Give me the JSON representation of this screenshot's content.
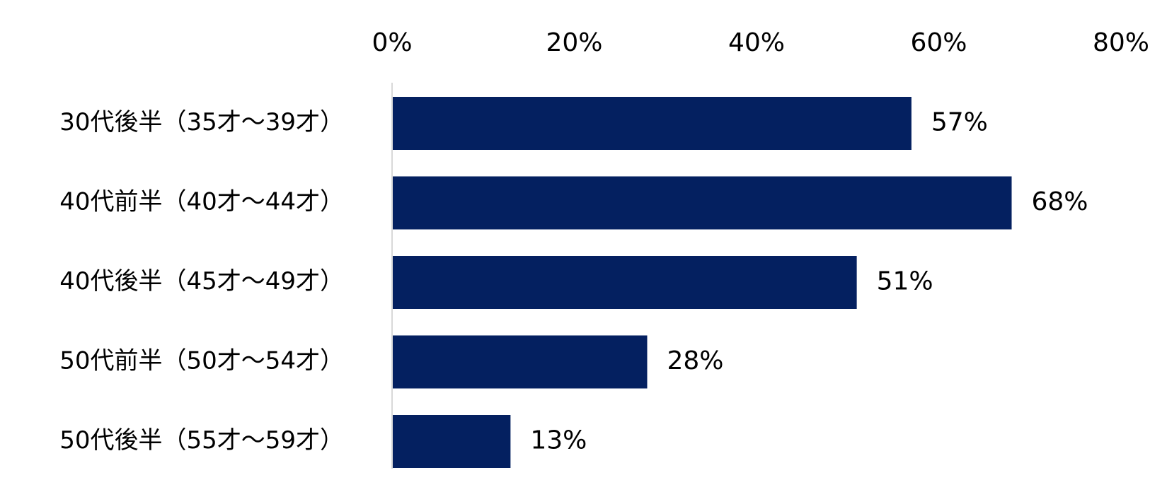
{
  "chart_data": {
    "type": "bar",
    "orientation": "horizontal",
    "categories": [
      "30代後半（35才～39才）",
      "40代前半（40才～44才）",
      "40代後半（45才～49才）",
      "50代前半（50才～54才）",
      "50代後半（55才～59才）"
    ],
    "values": [
      57,
      68,
      51,
      28,
      13
    ],
    "data_labels": [
      "57%",
      "68%",
      "51%",
      "28%",
      "13%"
    ],
    "xlim": [
      0,
      80
    ],
    "xticks": [
      0,
      20,
      40,
      60,
      80
    ],
    "xtick_labels": [
      "0%",
      "20%",
      "40%",
      "60%",
      "80%"
    ],
    "x_axis_position": "top",
    "grid": false,
    "legend": "none",
    "title": "",
    "xlabel": "",
    "ylabel": "",
    "bar_color": "#042060",
    "axis_line_color": "#d9d9d9"
  }
}
